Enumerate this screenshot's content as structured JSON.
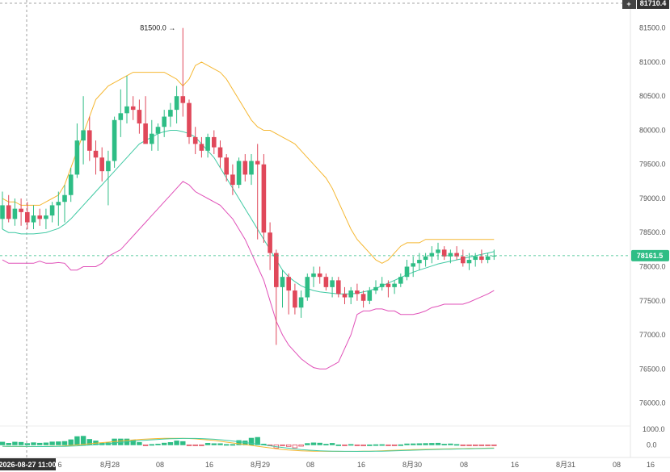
{
  "chart_data": {
    "type": "candlestick",
    "ylim": [
      75900,
      81650
    ],
    "y_ticks": [
      "81500.0",
      "81000.0",
      "80500.0",
      "80000.0",
      "79500.0",
      "79000.0",
      "78500.0",
      "78000.0",
      "77500.0",
      "77000.0",
      "76500.0",
      "76000.0"
    ],
    "x_ticks": [
      "8月28",
      "08",
      "16",
      "8月29",
      "08",
      "16",
      "8月30",
      "08",
      "16",
      "8月31",
      "08",
      "16"
    ],
    "x_first_partial": "6",
    "last_price": "78161.5",
    "crosshair_price": "81710.4",
    "crosshair_time": "2026-08-27 11:00",
    "annotations": {
      "high": "81500.0",
      "low": "76853.1"
    },
    "ohlc": [
      [
        78700,
        79100,
        78550,
        78900
      ],
      [
        78900,
        79050,
        78650,
        78700
      ],
      [
        78700,
        79000,
        78600,
        78850
      ],
      [
        78850,
        79000,
        78600,
        78800
      ],
      [
        78800,
        78950,
        78550,
        78650
      ],
      [
        78650,
        78900,
        78550,
        78750
      ],
      [
        78750,
        78850,
        78600,
        78700
      ],
      [
        78700,
        78850,
        78550,
        78750
      ],
      [
        78750,
        78950,
        78650,
        78900
      ],
      [
        78900,
        79100,
        78600,
        78950
      ],
      [
        78950,
        79200,
        78650,
        79050
      ],
      [
        79050,
        79450,
        78950,
        79350
      ],
      [
        79350,
        80100,
        79300,
        79850
      ],
      [
        79850,
        80500,
        79500,
        80000
      ],
      [
        80000,
        80200,
        79550,
        79700
      ],
      [
        79700,
        79850,
        79350,
        79600
      ],
      [
        79600,
        79750,
        79250,
        79400
      ],
      [
        79400,
        79700,
        78900,
        79550
      ],
      [
        79550,
        80200,
        79450,
        80150
      ],
      [
        80150,
        80600,
        79900,
        80250
      ],
      [
        80250,
        80800,
        80100,
        80350
      ],
      [
        80350,
        80500,
        80150,
        80300
      ],
      [
        80300,
        80450,
        79950,
        80100
      ],
      [
        80100,
        80500,
        79850,
        79800
      ],
      [
        79800,
        80150,
        79700,
        79950
      ],
      [
        79950,
        80100,
        79700,
        80050
      ],
      [
        80050,
        80300,
        79900,
        80200
      ],
      [
        80200,
        80400,
        80050,
        80300
      ],
      [
        80300,
        80650,
        80100,
        80500
      ],
      [
        80500,
        81500,
        80200,
        80400
      ],
      [
        80400,
        80450,
        79800,
        79900
      ],
      [
        79900,
        80050,
        79650,
        79800
      ],
      [
        79800,
        79900,
        79600,
        79700
      ],
      [
        79700,
        79950,
        79600,
        79900
      ],
      [
        79900,
        80000,
        79650,
        79750
      ],
      [
        79750,
        79850,
        79450,
        79600
      ],
      [
        79600,
        79650,
        79250,
        79350
      ],
      [
        79350,
        79500,
        79050,
        79200
      ],
      [
        79200,
        79600,
        79150,
        79550
      ],
      [
        79550,
        79650,
        79250,
        79350
      ],
      [
        79350,
        79650,
        79200,
        79550
      ],
      [
        79550,
        79800,
        78400,
        79500
      ],
      [
        79500,
        79650,
        78350,
        78500
      ],
      [
        78500,
        78650,
        77950,
        78200
      ],
      [
        78200,
        78250,
        76853,
        77700
      ],
      [
        77700,
        77950,
        77400,
        77850
      ],
      [
        77850,
        77900,
        77300,
        77650
      ],
      [
        77650,
        77750,
        77300,
        77400
      ],
      [
        77400,
        77650,
        77250,
        77550
      ],
      [
        77550,
        77900,
        77500,
        77850
      ],
      [
        77850,
        78000,
        77700,
        77900
      ],
      [
        77900,
        78000,
        77750,
        77850
      ],
      [
        77850,
        77900,
        77650,
        77700
      ],
      [
        77700,
        77850,
        77550,
        77800
      ],
      [
        77800,
        77850,
        77550,
        77600
      ],
      [
        77600,
        77700,
        77450,
        77550
      ],
      [
        77550,
        77700,
        77450,
        77650
      ],
      [
        77650,
        77750,
        77500,
        77600
      ],
      [
        77600,
        77650,
        77400,
        77500
      ],
      [
        77500,
        77700,
        77450,
        77650
      ],
      [
        77650,
        77800,
        77600,
        77700
      ],
      [
        77700,
        77850,
        77650,
        77750
      ],
      [
        77750,
        77800,
        77550,
        77700
      ],
      [
        77700,
        77800,
        77600,
        77750
      ],
      [
        77750,
        77900,
        77700,
        77850
      ],
      [
        77850,
        78100,
        77800,
        78000
      ],
      [
        78000,
        78150,
        77850,
        78050
      ],
      [
        78050,
        78200,
        77950,
        78100
      ],
      [
        78100,
        78200,
        78000,
        78150
      ],
      [
        78150,
        78300,
        78050,
        78200
      ],
      [
        78200,
        78350,
        78100,
        78250
      ],
      [
        78250,
        78300,
        78100,
        78150
      ],
      [
        78150,
        78250,
        78050,
        78200
      ],
      [
        78200,
        78300,
        78100,
        78150
      ],
      [
        78150,
        78250,
        78000,
        78050
      ],
      [
        78050,
        78200,
        77950,
        78100
      ],
      [
        78100,
        78200,
        78000,
        78150
      ],
      [
        78150,
        78250,
        78050,
        78100
      ],
      [
        78100,
        78200,
        78050,
        78150
      ],
      [
        78150,
        78250,
        78100,
        78161.5
      ]
    ],
    "bb_upper": [
      79000,
      78950,
      78950,
      78900,
      78900,
      78900,
      78900,
      78950,
      79000,
      79050,
      79200,
      79450,
      79700,
      79950,
      80200,
      80450,
      80550,
      80650,
      80700,
      80750,
      80800,
      80850,
      80850,
      80850,
      80850,
      80850,
      80850,
      80800,
      80750,
      80650,
      80750,
      80950,
      81000,
      80950,
      80900,
      80850,
      80750,
      80600,
      80450,
      80300,
      80150,
      80050,
      80000,
      80000,
      79950,
      79900,
      79850,
      79800,
      79700,
      79600,
      79500,
      79400,
      79300,
      79150,
      78950,
      78750,
      78550,
      78400,
      78300,
      78200,
      78100,
      78050,
      78100,
      78200,
      78300,
      78350,
      78350,
      78350,
      78400,
      78400,
      78400,
      78400,
      78400,
      78400,
      78400,
      78400,
      78400,
      78400,
      78400,
      78400
    ],
    "bb_mid": [
      78550,
      78500,
      78500,
      78480,
      78480,
      78480,
      78490,
      78500,
      78530,
      78560,
      78620,
      78700,
      78800,
      78900,
      79000,
      79100,
      79200,
      79300,
      79400,
      79500,
      79600,
      79700,
      79800,
      79850,
      79900,
      79950,
      79980,
      80000,
      80000,
      79980,
      79950,
      79900,
      79800,
      79700,
      79600,
      79450,
      79300,
      79150,
      79000,
      78850,
      78700,
      78550,
      78400,
      78250,
      78100,
      77950,
      77850,
      77780,
      77720,
      77680,
      77650,
      77630,
      77620,
      77610,
      77600,
      77600,
      77600,
      77610,
      77630,
      77650,
      77680,
      77720,
      77760,
      77800,
      77840,
      77880,
      77920,
      77950,
      77980,
      78010,
      78040,
      78060,
      78080,
      78100,
      78120,
      78140,
      78160,
      78180,
      78200,
      78220
    ],
    "bb_lower": [
      78100,
      78050,
      78050,
      78050,
      78050,
      78050,
      78080,
      78050,
      78050,
      78060,
      78050,
      77950,
      77950,
      78000,
      78000,
      78000,
      78050,
      78150,
      78200,
      78250,
      78350,
      78450,
      78550,
      78650,
      78750,
      78850,
      78950,
      79050,
      79150,
      79250,
      79200,
      79100,
      79050,
      79000,
      78950,
      78900,
      78800,
      78700,
      78550,
      78400,
      78200,
      78000,
      77800,
      77500,
      77200,
      77000,
      76850,
      76750,
      76650,
      76580,
      76520,
      76500,
      76500,
      76550,
      76600,
      76800,
      77000,
      77300,
      77350,
      77350,
      77380,
      77380,
      77350,
      77350,
      77300,
      77300,
      77300,
      77320,
      77350,
      77400,
      77420,
      77450,
      77450,
      77450,
      77450,
      77480,
      77520,
      77560,
      77600,
      77650
    ],
    "macd_ticks": [
      "1000.0",
      "0.0"
    ]
  }
}
